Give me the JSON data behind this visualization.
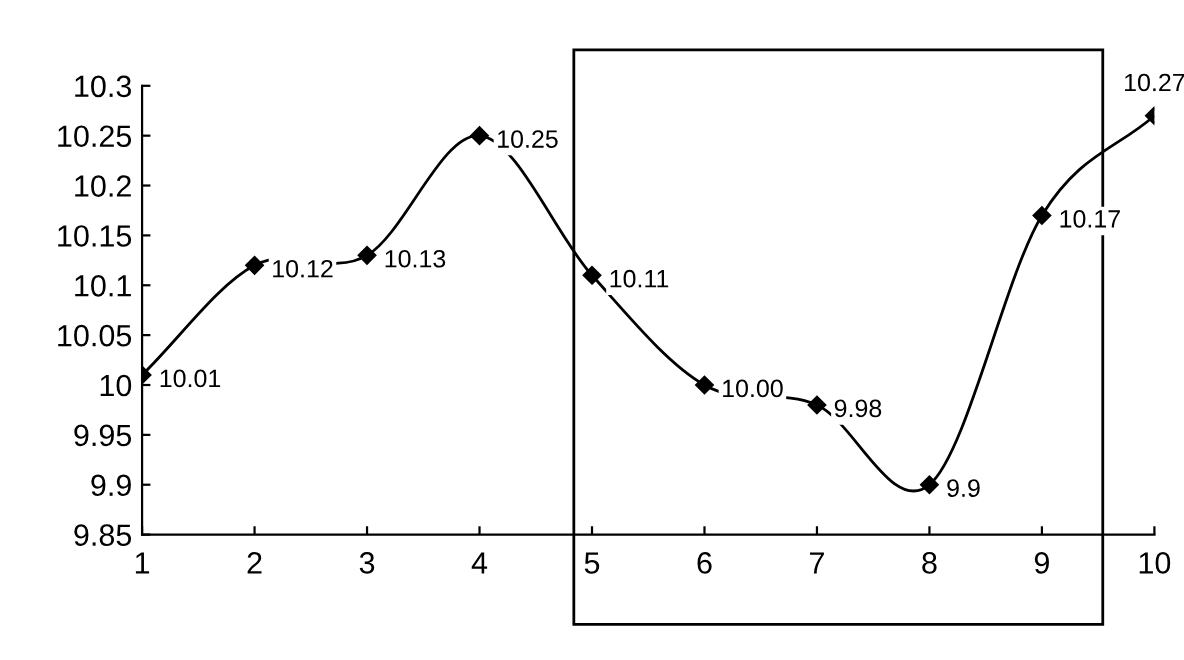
{
  "chart_data": {
    "type": "line",
    "x": [
      1,
      2,
      3,
      4,
      5,
      6,
      7,
      8,
      9,
      10
    ],
    "series": [
      {
        "color": "#000000",
        "values": [
          10.01,
          10.12,
          10.13,
          10.25,
          10.11,
          10.0,
          9.98,
          9.9,
          10.17,
          10.27
        ],
        "value_labels": [
          "10.01",
          "10.12",
          "10.13",
          "10.25",
          "10.11",
          "10.00",
          "9.98",
          "9.9",
          "10.17",
          "10.27"
        ]
      }
    ],
    "xlim": [
      1,
      10
    ],
    "xticks": [
      1,
      2,
      3,
      4,
      5,
      6,
      7,
      8,
      9,
      10
    ],
    "ylim": [
      9.85,
      10.3
    ],
    "yticks": [
      9.85,
      9.9,
      9.95,
      {
        "value": 10,
        "label": "10"
      },
      10.05,
      {
        "value": 10.1,
        "label": "10.1"
      },
      10.15,
      {
        "value": 10.2,
        "label": "10.2"
      },
      10.25,
      {
        "value": 10.3,
        "label": "10.3"
      }
    ],
    "marker": "diamond",
    "line_style": "solid",
    "grid": false,
    "legend": false
  }
}
